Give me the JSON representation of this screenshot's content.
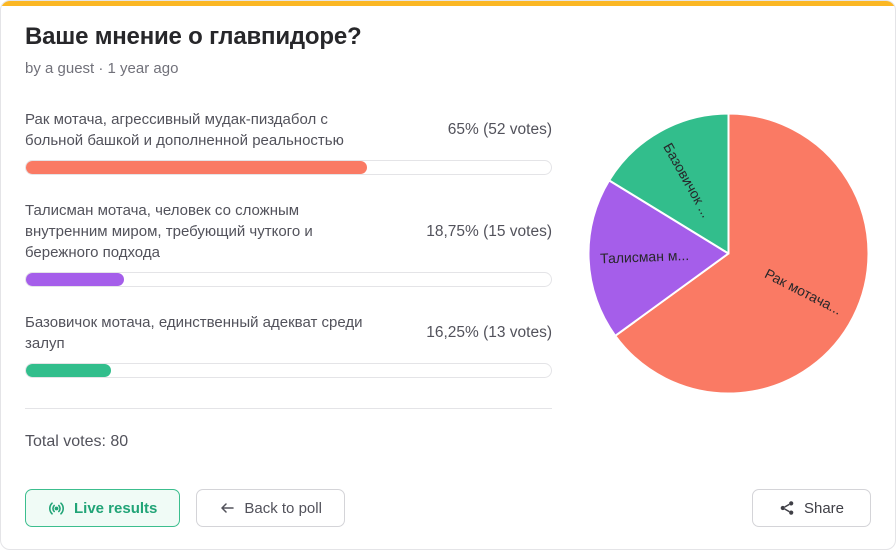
{
  "colors": {
    "accent_bar": "#FBB724",
    "track_border": "#E4E4E7",
    "button_border": "#D4D4D8",
    "live_text": "#21A477",
    "live_border": "#3CBE8E",
    "live_bg": "#F0FBF6"
  },
  "header": {
    "title": "Ваше мнение о главпидоре?",
    "byline": "by a guest · 1 year ago"
  },
  "options": [
    {
      "label": "Рак мотача, агрессивный мудак-пиздабол с больной башкой и дополненной реальностью",
      "percent": 65,
      "votes": 52,
      "percent_label": "65% (52 votes)",
      "color": "#FA7A64"
    },
    {
      "label": "Талисман мотача, человек со сложным внутренним миром, требующий чуткого и бережного подхода",
      "percent": 18.75,
      "votes": 15,
      "percent_label": "18,75% (15 votes)",
      "color": "#A55EEA"
    },
    {
      "label": "Базовичок мотача, единственный адекват среди залуп",
      "percent": 16.25,
      "votes": 13,
      "percent_label": "16,25% (13 votes)",
      "color": "#32BE8C"
    }
  ],
  "total_votes_label": "Total votes: 80",
  "buttons": {
    "live_label": "Live results",
    "back_label": "Back to poll",
    "share_label": "Share"
  },
  "icons": {
    "live": "broadcast-icon",
    "back": "arrow-left-icon",
    "share": "share-nodes-icon"
  },
  "chart_data": {
    "type": "pie",
    "labels": [
      "Рак мотача...",
      "Талисман м...",
      "Базовичок ..."
    ],
    "values": [
      65,
      18.75,
      16.25
    ],
    "votes": [
      52,
      15,
      13
    ],
    "colors": [
      "#FA7A64",
      "#A55EEA",
      "#32BE8C"
    ],
    "start_angle_deg": 0,
    "direction": "clockwise",
    "stroke": "#FFFFFF",
    "label_color": "#27272A",
    "legend": "none"
  }
}
